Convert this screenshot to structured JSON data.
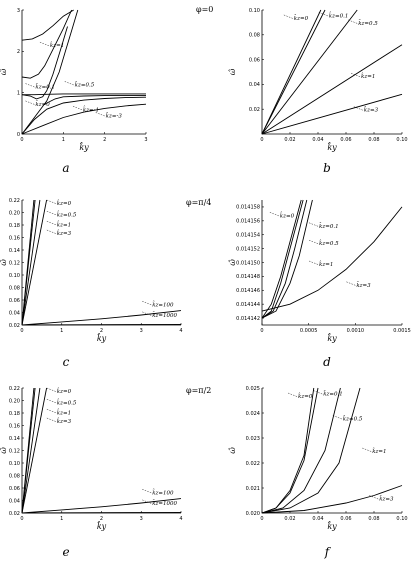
{
  "phi_labels": [
    "φ=0",
    "φ=π/4",
    "φ=π/2"
  ],
  "chart_data": [
    {
      "panel": "a",
      "type": "line",
      "xlabel": "k̂y",
      "ylabel": "ω̂",
      "xlim": [
        0,
        3
      ],
      "ylim": [
        0,
        3
      ],
      "xticks": [
        0,
        1,
        2,
        3
      ],
      "xtick_labels": [
        "0",
        "1",
        "2",
        "3"
      ],
      "yticks": [
        0,
        1,
        2,
        3
      ],
      "ytick_labels": [
        "0",
        "1",
        "2",
        "3"
      ],
      "series": [
        {
          "name": "k̂z=1 (upper)",
          "x": [
            0,
            0.25,
            0.5,
            0.75,
            1.0,
            1.25
          ],
          "y": [
            2.27,
            2.3,
            2.42,
            2.62,
            2.85,
            3.0
          ]
        },
        {
          "name": "k̂z=0.1 (upper)",
          "x": [
            0,
            0.2,
            0.4,
            0.55,
            0.75,
            1.0,
            1.2
          ],
          "y": [
            1.38,
            1.35,
            1.45,
            1.65,
            2.05,
            2.55,
            3.0
          ]
        },
        {
          "name": "k̂z=0.1 (lower)",
          "x": [
            0,
            0.2,
            0.35,
            0.5,
            0.6,
            0.75,
            0.95,
            1.1
          ],
          "y": [
            0.95,
            0.92,
            0.85,
            0.9,
            1.05,
            1.45,
            2.1,
            2.6
          ]
        },
        {
          "name": "k̂z=0",
          "x": [
            0,
            0.3,
            0.6,
            0.9,
            1.05,
            1.2,
            1.35
          ],
          "y": [
            0,
            0.4,
            0.8,
            1.5,
            2.0,
            2.5,
            3.0
          ]
        },
        {
          "name": "k̂z=0.5",
          "x": [
            0,
            0.3,
            0.6,
            1.0,
            1.5,
            2.0,
            2.5,
            3.0
          ],
          "y": [
            0.95,
            0.95,
            0.96,
            0.97,
            0.97,
            0.97,
            0.97,
            0.97
          ]
        },
        {
          "name": "k̂z=0.1 (plateau)",
          "x": [
            0.5,
            0.8,
            1.0,
            1.5,
            2.0,
            2.5,
            3.0
          ],
          "y": [
            0.7,
            0.85,
            0.9,
            0.92,
            0.93,
            0.93,
            0.93
          ]
        },
        {
          "name": "k̂z=-1",
          "x": [
            0,
            0.3,
            0.6,
            1.0,
            1.5,
            2.0,
            2.5,
            3.0
          ],
          "y": [
            0,
            0.35,
            0.6,
            0.75,
            0.82,
            0.86,
            0.88,
            0.89
          ]
        },
        {
          "name": "k̂z=-3",
          "x": [
            0,
            0.5,
            1.0,
            1.5,
            2.0,
            2.5,
            3.0
          ],
          "y": [
            0,
            0.2,
            0.4,
            0.53,
            0.62,
            0.68,
            0.72
          ]
        }
      ],
      "annotations": [
        {
          "text": "k̂z=1",
          "x": 0.65,
          "y": 2.1
        },
        {
          "text": "k̂z=0.1",
          "x": 0.3,
          "y": 1.1
        },
        {
          "text": "k̂z=0.5",
          "x": 1.25,
          "y": 1.15
        },
        {
          "text": "k̂z=0",
          "x": 0.3,
          "y": 0.68
        },
        {
          "text": "k̂z=-1",
          "x": 1.45,
          "y": 0.55
        },
        {
          "text": "k̂z=-3",
          "x": 2.0,
          "y": 0.4
        }
      ]
    },
    {
      "panel": "b",
      "type": "line",
      "xlabel": "k̂y",
      "ylabel": "ω̂",
      "xlim": [
        0,
        0.1
      ],
      "ylim": [
        0,
        0.1
      ],
      "xticks": [
        0,
        0.02,
        0.04,
        0.06,
        0.08,
        0.1
      ],
      "xtick_labels": [
        "0",
        "0.02",
        "0.04",
        "0.06",
        "0.08",
        "0.10"
      ],
      "yticks": [
        0.02,
        0.04,
        0.06,
        0.08,
        0.1
      ],
      "ytick_labels": [
        "0.02",
        "0.04",
        "0.06",
        "0.08",
        "0.10"
      ],
      "series": [
        {
          "name": "k̂z=0",
          "x": [
            0,
            0.042
          ],
          "y": [
            0,
            0.1
          ]
        },
        {
          "name": "k̂z=0.1",
          "x": [
            0,
            0.045
          ],
          "y": [
            0,
            0.1
          ]
        },
        {
          "name": "k̂z=0.5",
          "x": [
            0,
            0.068
          ],
          "y": [
            0,
            0.1
          ]
        },
        {
          "name": "k̂z=1",
          "x": [
            0,
            0.1
          ],
          "y": [
            0,
            0.072
          ]
        },
        {
          "name": "k̂z=3",
          "x": [
            0,
            0.1
          ],
          "y": [
            0,
            0.032
          ]
        }
      ],
      "annotations": [
        {
          "text": "k̂z=0",
          "x": 0.022,
          "y": 0.092
        },
        {
          "text": "k̂z=0.1",
          "x": 0.047,
          "y": 0.094
        },
        {
          "text": "k̂z=0.5",
          "x": 0.068,
          "y": 0.088
        },
        {
          "text": "k̂z=1",
          "x": 0.07,
          "y": 0.045
        },
        {
          "text": "k̂z=3",
          "x": 0.072,
          "y": 0.018
        }
      ]
    },
    {
      "panel": "c",
      "type": "line",
      "xlabel": "k̂y",
      "ylabel": "ω̂",
      "xlim": [
        0,
        4
      ],
      "ylim": [
        0.02,
        0.22
      ],
      "xticks": [
        0,
        1,
        2,
        3,
        4
      ],
      "xtick_labels": [
        "0",
        "1",
        "2",
        "3",
        "4"
      ],
      "yticks": [
        0.02,
        0.04,
        0.06,
        0.08,
        0.1,
        0.12,
        0.14,
        0.16,
        0.18,
        0.2,
        0.22
      ],
      "ytick_labels": [
        "0.02",
        "0.04",
        "0.06",
        "0.08",
        "0.10",
        "0.12",
        "0.14",
        "0.16",
        "0.18",
        "0.20",
        "0.22"
      ],
      "series": [
        {
          "name": "k̂z=0",
          "x": [
            0,
            0.3
          ],
          "y": [
            0.02,
            0.22
          ]
        },
        {
          "name": "k̂z=0.5",
          "x": [
            0,
            0.33
          ],
          "y": [
            0.02,
            0.22
          ]
        },
        {
          "name": "k̂z=1",
          "x": [
            0,
            0.45
          ],
          "y": [
            0.02,
            0.22
          ]
        },
        {
          "name": "k̂z=3",
          "x": [
            0,
            0.62
          ],
          "y": [
            0.02,
            0.22
          ]
        },
        {
          "name": "k̂z=100",
          "x": [
            0,
            1,
            2,
            3,
            4
          ],
          "y": [
            0.02,
            0.025,
            0.03,
            0.036,
            0.043
          ]
        },
        {
          "name": "k̂z=1000",
          "x": [
            0,
            4
          ],
          "y": [
            0.02,
            0.021
          ]
        }
      ],
      "annotations": [
        {
          "text": "k̂z=0",
          "x": 0.85,
          "y": 0.212
        },
        {
          "text": "k̂z=0.5",
          "x": 0.85,
          "y": 0.194
        },
        {
          "text": "k̂z=1",
          "x": 0.85,
          "y": 0.178
        },
        {
          "text": "k̂z=3",
          "x": 0.85,
          "y": 0.164
        },
        {
          "text": "k̂z=100",
          "x": 3.25,
          "y": 0.05
        },
        {
          "text": "k̂z=1000",
          "x": 3.25,
          "y": 0.033
        }
      ]
    },
    {
      "panel": "d",
      "type": "line",
      "xlabel": "k̂y",
      "ylabel": "ω̂",
      "xlim": [
        0,
        0.0015
      ],
      "ylim": [
        0.014141,
        0.014159
      ],
      "xticks": [
        0,
        0.0005,
        0.001,
        0.0015
      ],
      "xtick_labels": [
        "0",
        "0.0005",
        "0.0010",
        "0.0015"
      ],
      "yticks": [
        0.014142,
        0.014144,
        0.014146,
        0.014148,
        0.01415,
        0.014152,
        0.014154,
        0.014156,
        0.014158
      ],
      "ytick_labels": [
        "0.014142",
        "0.014144",
        "0.014146",
        "0.014148",
        "0.014150",
        "0.014152",
        "0.014154",
        "0.014156",
        "0.014158"
      ],
      "series": [
        {
          "name": "k̂z=0",
          "x": [
            0,
            0.0001,
            0.0002,
            0.0003,
            0.00042
          ],
          "y": [
            0.014142,
            0.014144,
            0.014148,
            0.014153,
            0.014159
          ]
        },
        {
          "name": "k̂z=0.1",
          "x": [
            0,
            0.0001,
            0.0002,
            0.0003,
            0.00044
          ],
          "y": [
            0.014142,
            0.014143,
            0.014147,
            0.014152,
            0.014159
          ]
        },
        {
          "name": "k̂z=0.5",
          "x": [
            0,
            0.00012,
            0.00025,
            0.00035,
            0.00048
          ],
          "y": [
            0.014142,
            0.014143,
            0.014147,
            0.014152,
            0.014159
          ]
        },
        {
          "name": "k̂z=1",
          "x": [
            0,
            0.00015,
            0.0003,
            0.0004,
            0.00054
          ],
          "y": [
            0.014142,
            0.014143,
            0.014147,
            0.014151,
            0.014159
          ]
        },
        {
          "name": "k̂z=3",
          "x": [
            0,
            0.0003,
            0.0006,
            0.0009,
            0.0012,
            0.0015
          ],
          "y": [
            0.014143,
            0.014144,
            0.014146,
            0.014149,
            0.014153,
            0.014158
          ]
        }
      ],
      "annotations": [
        {
          "text": "k̂z=0",
          "x": 0.00018,
          "y": 0.0141565
        },
        {
          "text": "k̂z=0.1",
          "x": 0.0006,
          "y": 0.014155
        },
        {
          "text": "k̂z=0.5",
          "x": 0.0006,
          "y": 0.0141525
        },
        {
          "text": "k̂z=1",
          "x": 0.0006,
          "y": 0.0141495
        },
        {
          "text": "k̂z=3",
          "x": 0.001,
          "y": 0.0141465
        }
      ]
    },
    {
      "panel": "e",
      "type": "line",
      "xlabel": "k̂y",
      "ylabel": "ω̂",
      "xlim": [
        0,
        4
      ],
      "ylim": [
        0.02,
        0.22
      ],
      "xticks": [
        0,
        1,
        2,
        3,
        4
      ],
      "xtick_labels": [
        "0",
        "1",
        "2",
        "3",
        "4"
      ],
      "yticks": [
        0.02,
        0.04,
        0.06,
        0.08,
        0.1,
        0.12,
        0.14,
        0.16,
        0.18,
        0.2,
        0.22
      ],
      "ytick_labels": [
        "0.02",
        "0.04",
        "0.06",
        "0.08",
        "0.10",
        "0.12",
        "0.14",
        "0.16",
        "0.18",
        "0.20",
        "0.22"
      ],
      "series": [
        {
          "name": "k̂z=0",
          "x": [
            0,
            0.3
          ],
          "y": [
            0.02,
            0.22
          ]
        },
        {
          "name": "k̂z=0.5",
          "x": [
            0,
            0.33
          ],
          "y": [
            0.02,
            0.22
          ]
        },
        {
          "name": "k̂z=1",
          "x": [
            0,
            0.45
          ],
          "y": [
            0.02,
            0.22
          ]
        },
        {
          "name": "k̂z=3",
          "x": [
            0,
            0.62
          ],
          "y": [
            0.02,
            0.22
          ]
        },
        {
          "name": "k̂z=100",
          "x": [
            0,
            1,
            2,
            3,
            4
          ],
          "y": [
            0.02,
            0.025,
            0.03,
            0.036,
            0.043
          ]
        },
        {
          "name": "k̂z=1000",
          "x": [
            0,
            4
          ],
          "y": [
            0.02,
            0.021
          ]
        }
      ],
      "annotations": [
        {
          "text": "k̂z=0",
          "x": 0.85,
          "y": 0.212
        },
        {
          "text": "k̂z=0.5",
          "x": 0.85,
          "y": 0.194
        },
        {
          "text": "k̂z=1",
          "x": 0.85,
          "y": 0.178
        },
        {
          "text": "k̂z=3",
          "x": 0.85,
          "y": 0.164
        },
        {
          "text": "k̂z=100",
          "x": 3.25,
          "y": 0.05
        },
        {
          "text": "k̂z=1000",
          "x": 3.25,
          "y": 0.033
        }
      ]
    },
    {
      "panel": "f",
      "type": "line",
      "xlabel": "k̂y",
      "ylabel": "ω̂",
      "xlim": [
        0,
        0.1
      ],
      "ylim": [
        0.02,
        0.025
      ],
      "xticks": [
        0,
        0.02,
        0.04,
        0.06,
        0.08,
        0.1
      ],
      "xtick_labels": [
        "0",
        "0.02",
        "0.04",
        "0.06",
        "0.08",
        "0.10"
      ],
      "yticks": [
        0.02,
        0.021,
        0.022,
        0.023,
        0.024,
        0.025
      ],
      "ytick_labels": [
        "0.020",
        "0.021",
        "0.022",
        "0.023",
        "0.024",
        "0.025"
      ],
      "series": [
        {
          "name": "k̂z=0",
          "x": [
            0,
            0.01,
            0.02,
            0.03,
            0.037
          ],
          "y": [
            0.02,
            0.0202,
            0.0209,
            0.0223,
            0.025
          ]
        },
        {
          "name": "k̂z=0.1",
          "x": [
            0,
            0.01,
            0.02,
            0.03,
            0.04
          ],
          "y": [
            0.02,
            0.0202,
            0.0208,
            0.0221,
            0.025
          ]
        },
        {
          "name": "k̂z=0.5",
          "x": [
            0,
            0.015,
            0.03,
            0.045,
            0.056
          ],
          "y": [
            0.02,
            0.0202,
            0.0209,
            0.0225,
            0.025
          ]
        },
        {
          "name": "k̂z=1",
          "x": [
            0,
            0.02,
            0.04,
            0.055,
            0.07
          ],
          "y": [
            0.02,
            0.0202,
            0.0208,
            0.022,
            0.025
          ]
        },
        {
          "name": "k̂z=3",
          "x": [
            0,
            0.03,
            0.06,
            0.08,
            0.1
          ],
          "y": [
            0.02,
            0.0201,
            0.0204,
            0.0207,
            0.0211
          ]
        }
      ],
      "annotations": [
        {
          "text": "k̂z=0",
          "x": 0.025,
          "y": 0.0246
        },
        {
          "text": "k̂z=0.1",
          "x": 0.043,
          "y": 0.0247
        },
        {
          "text": "k̂z=0.5",
          "x": 0.057,
          "y": 0.0237
        },
        {
          "text": "k̂z=1",
          "x": 0.078,
          "y": 0.0224
        },
        {
          "text": "k̂z=3",
          "x": 0.083,
          "y": 0.0205
        }
      ]
    }
  ]
}
